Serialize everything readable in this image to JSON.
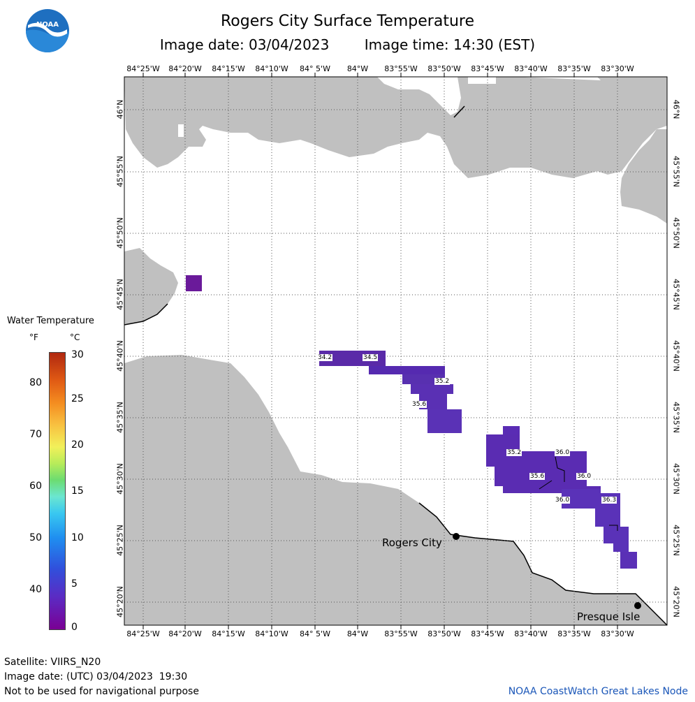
{
  "header": {
    "title": "Rogers City Surface Temperature",
    "image_date_label": "Image date: 03/04/2023",
    "image_time_label": "Image time: 14:30 (EST)"
  },
  "logo": {
    "text": "NOAA",
    "icon": "noaa-logo-icon",
    "colors": {
      "blue": "#1e6fc0",
      "light": "#4fb3e8"
    }
  },
  "map": {
    "colors": {
      "land": "#c0c0c0",
      "water": "#ffffff",
      "grid": "#555555",
      "coast": "#000000"
    },
    "lon_ticks": [
      "84°25'W",
      "84°20'W",
      "84°15'W",
      "84°10'W",
      "84° 5'W",
      "84°W",
      "83°55'W",
      "83°50'W",
      "83°45'W",
      "83°40'W",
      "83°35'W",
      "83°30'W"
    ],
    "lat_ticks": [
      "46°N",
      "45°55'N",
      "45°50'N",
      "45°45'N",
      "45°40'N",
      "45°35'N",
      "45°30'N",
      "45°25'N",
      "45°20'N"
    ],
    "places": [
      {
        "name": "Rogers City",
        "lon": "83°49'W",
        "lat": "45°25'N"
      },
      {
        "name": "Presque Isle",
        "lon": "83°29'W",
        "lat": "45°20'N"
      }
    ],
    "temperature_labels": [
      "34.2",
      "34.5",
      "35.2",
      "35.6",
      "35.2",
      "36.0",
      "35.6",
      "36.0",
      "36.0",
      "36.3"
    ]
  },
  "legend": {
    "title": "Water Temperature",
    "unit_f": "°F",
    "unit_c": "°C",
    "f_ticks": [
      "80",
      "70",
      "60",
      "50",
      "40"
    ],
    "c_ticks": [
      "30",
      "25",
      "20",
      "15",
      "10",
      "5",
      "0"
    ]
  },
  "footer": {
    "satellite": "Satellite: VIIRS_N20",
    "utc_date": "Image date: (UTC) 03/04/2023  19:30",
    "disclaimer": "Not to be used for navigational purpose",
    "credit": "NOAA CoastWatch Great Lakes Node"
  }
}
